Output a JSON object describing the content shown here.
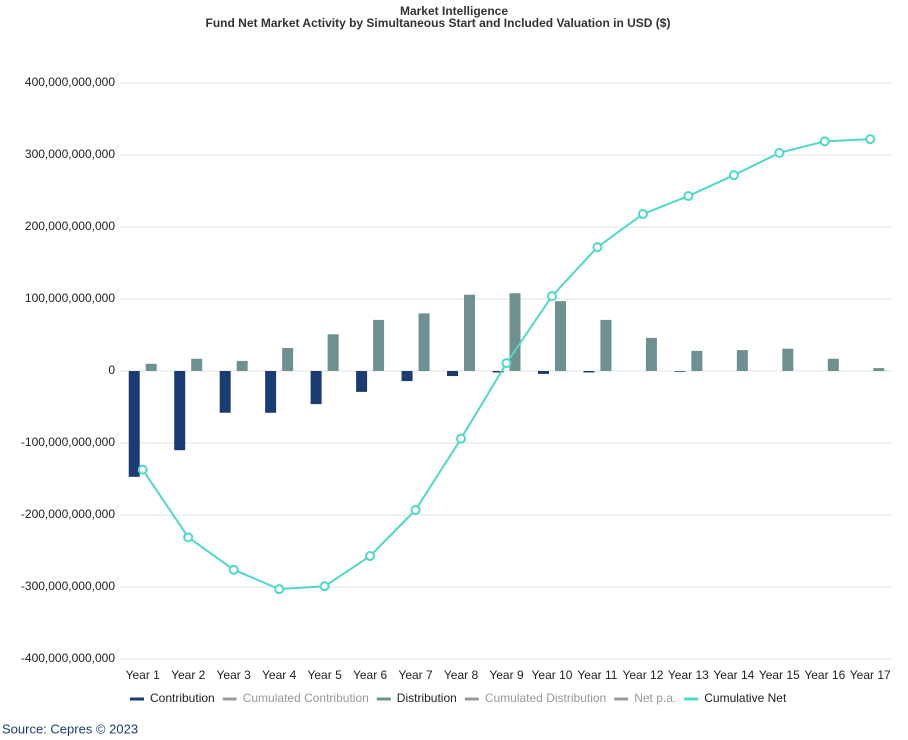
{
  "chart_data": {
    "type": "bar-line",
    "title": "Market Intelligence",
    "subtitle": "Fund Net Market Activity by Simultaneous Start and Included Valuation in USD ($)",
    "source": "Source: Cepres © 2023",
    "categories": [
      "Year 1",
      "Year 2",
      "Year 3",
      "Year 4",
      "Year 5",
      "Year 6",
      "Year 7",
      "Year 8",
      "Year 9",
      "Year 10",
      "Year 11",
      "Year 12",
      "Year 13",
      "Year 14",
      "Year 15",
      "Year 16",
      "Year 17"
    ],
    "ylim": [
      -400000000000,
      400000000000
    ],
    "yticks": [
      {
        "value": -400000000000,
        "label": "-400,000,000,000"
      },
      {
        "value": -300000000000,
        "label": "-300,000,000,000"
      },
      {
        "value": -200000000000,
        "label": "-200,000,000,000"
      },
      {
        "value": -100000000000,
        "label": "-100,000,000,000"
      },
      0,
      {
        "value": 100000000000,
        "label": "100,000,000,000"
      },
      {
        "value": 200000000000,
        "label": "200,000,000,000"
      },
      {
        "value": 300000000000,
        "label": "300,000,000,000"
      },
      {
        "value": 400000000000,
        "label": "400,000,000,000"
      }
    ],
    "grid": true,
    "legend": "bottom",
    "series": [
      {
        "name": "Contribution",
        "type": "bar",
        "color": "#1b3c72",
        "values": [
          -147000000000,
          -110000000000,
          -58000000000,
          -58000000000,
          -46000000000,
          -29000000000,
          -14000000000,
          -7000000000,
          -2000000000,
          -4000000000,
          -2000000000,
          0,
          -1000000000,
          0,
          0,
          0,
          0
        ]
      },
      {
        "name": "Cumulated Contribution",
        "type": "line",
        "color": "#999999",
        "hidden": true
      },
      {
        "name": "Distribution",
        "type": "bar",
        "color": "#6f9090",
        "values": [
          10000000000,
          17000000000,
          14000000000,
          32000000000,
          51000000000,
          71000000000,
          80000000000,
          106000000000,
          108000000000,
          97000000000,
          71000000000,
          46000000000,
          28000000000,
          29000000000,
          31000000000,
          17000000000,
          4000000000
        ]
      },
      {
        "name": "Cumulated Distribution",
        "type": "line",
        "color": "#999999",
        "hidden": true
      },
      {
        "name": "Net p.a.",
        "type": "line",
        "color": "#999999",
        "hidden": true
      },
      {
        "name": "Cumulative Net",
        "type": "line",
        "color": "#4fd8c8",
        "values": [
          -137000000000,
          -231000000000,
          -276000000000,
          -303000000000,
          -299000000000,
          -257000000000,
          -193000000000,
          -94000000000,
          11000000000,
          104000000000,
          172000000000,
          218000000000,
          243000000000,
          272000000000,
          303000000000,
          319000000000,
          322000000000
        ]
      }
    ]
  }
}
